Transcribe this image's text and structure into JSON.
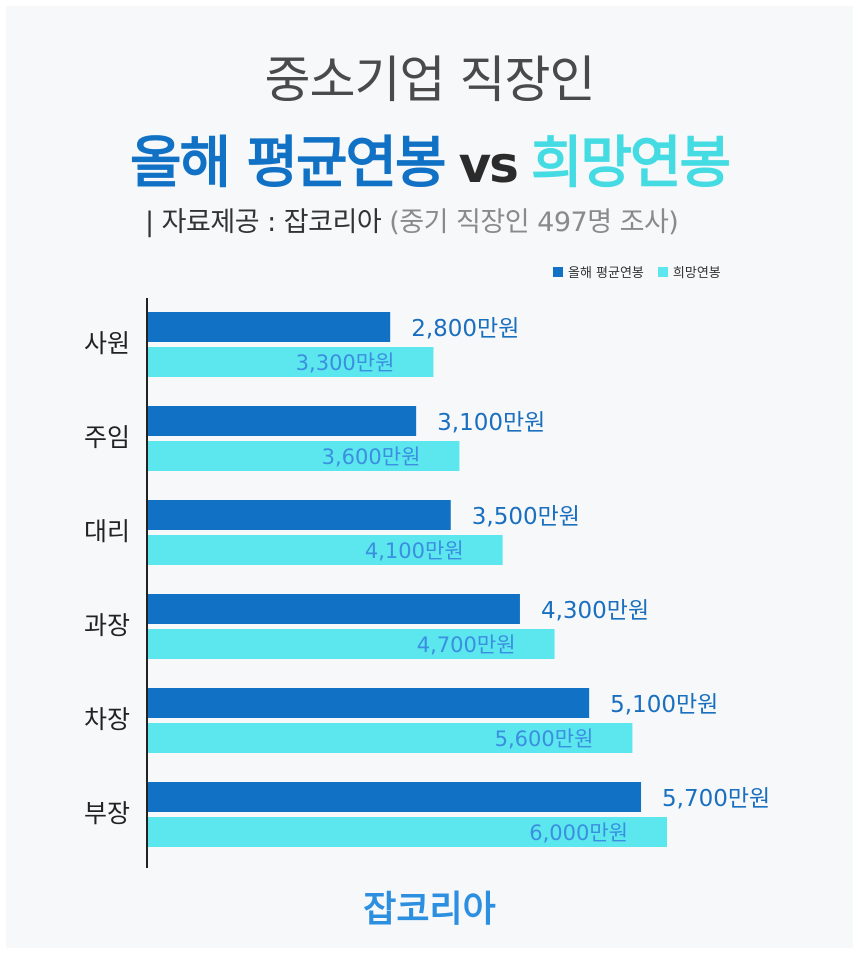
{
  "header": {
    "title_line1": "중소기업 직장인",
    "title_main": "올해 평균연봉",
    "title_vs": "vs",
    "title_hope": "희망연봉",
    "source": "| 자료제공 : 잡코리아",
    "source_sub": "(중기 직장인 497명 조사)"
  },
  "footer": {
    "brand": "잡코리아"
  },
  "colors": {
    "current": "#1172c5",
    "hope": "#5ce6ee",
    "current_label": "#1a6fbf",
    "hope_label": "#3a8fe0",
    "axis": "#222222"
  },
  "chart_data": {
    "type": "bar",
    "orientation": "horizontal",
    "categories": [
      "사원",
      "주임",
      "대리",
      "과장",
      "차장",
      "부장"
    ],
    "series": [
      {
        "name": "올해 평균연봉",
        "values": [
          2800,
          3100,
          3500,
          4300,
          5100,
          5700
        ]
      },
      {
        "name": "희망연봉",
        "values": [
          3300,
          3600,
          4100,
          4700,
          5600,
          6000
        ]
      }
    ],
    "data_labels": {
      "올해 평균연봉": [
        "2,800만원",
        "3,100만원",
        "3,500만원",
        "4,300만원",
        "5,100만원",
        "5,700만원"
      ],
      "희망연봉": [
        "3,300만원",
        "3,600만원",
        "4,100만원",
        "4,700만원",
        "5,600만원",
        "6,000만원"
      ]
    },
    "unit": "만원",
    "xlim": [
      0,
      6000
    ],
    "legend_position": "top-right",
    "grid": false
  }
}
